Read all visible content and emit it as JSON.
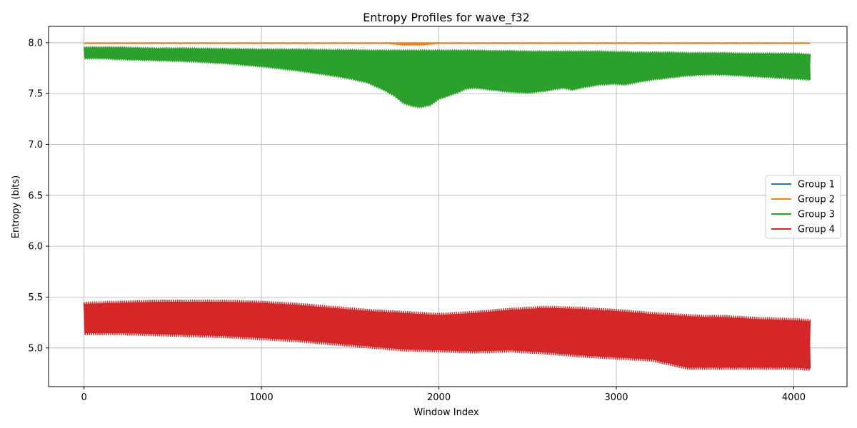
{
  "chart_data": {
    "type": "line",
    "title": "Entropy Profiles for wave_f32",
    "xlabel": "Window Index",
    "ylabel": "Entropy (bits)",
    "xlim": [
      -200,
      4300
    ],
    "ylim": [
      4.62,
      8.16
    ],
    "x_ticks": [
      0,
      1000,
      2000,
      3000,
      4000
    ],
    "y_ticks": [
      5.0,
      5.5,
      6.0,
      6.5,
      7.0,
      7.5,
      8.0
    ],
    "x_tick_labels": [
      "0",
      "1000",
      "2000",
      "3000",
      "4000"
    ],
    "y_tick_labels": [
      "5.0",
      "5.5",
      "6.0",
      "6.5",
      "7.0",
      "7.5",
      "8.0"
    ],
    "grid": true,
    "legend_position": "right",
    "series": [
      {
        "name": "Group 1",
        "color": "#1f77b4",
        "x": [
          0,
          500,
          1000,
          1500,
          2000,
          2500,
          3000,
          3500,
          4095
        ],
        "upper": [
          7.998,
          7.998,
          7.998,
          7.998,
          7.998,
          7.998,
          7.998,
          7.998,
          7.998
        ],
        "lower": [
          7.994,
          7.994,
          7.994,
          7.994,
          7.994,
          7.994,
          7.994,
          7.994,
          7.994
        ]
      },
      {
        "name": "Group 2",
        "color": "#ff7f0e",
        "x": [
          0,
          500,
          1000,
          1500,
          1700,
          1800,
          1900,
          2000,
          2100,
          2500,
          3000,
          3500,
          4095
        ],
        "upper": [
          8.0,
          8.0,
          8.0,
          8.0,
          8.0,
          7.998,
          7.997,
          8.0,
          8.0,
          8.0,
          8.0,
          8.0,
          8.0
        ],
        "lower": [
          7.99,
          7.99,
          7.99,
          7.99,
          7.99,
          7.975,
          7.975,
          7.99,
          7.99,
          7.99,
          7.99,
          7.99,
          7.99
        ]
      },
      {
        "name": "Group 3",
        "color": "#2ca02c",
        "x": [
          0,
          100,
          200,
          400,
          600,
          800,
          1000,
          1200,
          1400,
          1500,
          1600,
          1700,
          1750,
          1800,
          1850,
          1900,
          1950,
          2000,
          2050,
          2100,
          2150,
          2200,
          2300,
          2400,
          2500,
          2600,
          2700,
          2750,
          2800,
          2900,
          3000,
          3050,
          3100,
          3200,
          3300,
          3400,
          3500,
          3600,
          3700,
          3800,
          3900,
          4000,
          4095
        ],
        "upper": [
          7.96,
          7.96,
          7.96,
          7.95,
          7.95,
          7.945,
          7.94,
          7.94,
          7.935,
          7.935,
          7.93,
          7.93,
          7.93,
          7.93,
          7.93,
          7.93,
          7.93,
          7.93,
          7.93,
          7.93,
          7.93,
          7.93,
          7.925,
          7.925,
          7.92,
          7.92,
          7.92,
          7.92,
          7.92,
          7.92,
          7.915,
          7.915,
          7.91,
          7.91,
          7.91,
          7.905,
          7.905,
          7.905,
          7.9,
          7.9,
          7.9,
          7.9,
          7.89
        ],
        "lower": [
          7.84,
          7.84,
          7.83,
          7.82,
          7.81,
          7.79,
          7.76,
          7.72,
          7.67,
          7.64,
          7.6,
          7.52,
          7.47,
          7.4,
          7.37,
          7.36,
          7.38,
          7.44,
          7.47,
          7.5,
          7.54,
          7.55,
          7.53,
          7.51,
          7.5,
          7.52,
          7.55,
          7.53,
          7.55,
          7.58,
          7.59,
          7.58,
          7.6,
          7.63,
          7.65,
          7.67,
          7.68,
          7.68,
          7.67,
          7.66,
          7.65,
          7.64,
          7.63
        ]
      },
      {
        "name": "Group 4",
        "color": "#d62728",
        "x": [
          0,
          200,
          400,
          600,
          800,
          1000,
          1200,
          1400,
          1600,
          1800,
          2000,
          2200,
          2400,
          2600,
          2800,
          3000,
          3200,
          3300,
          3400,
          3500,
          3600,
          3800,
          4000,
          4095
        ],
        "upper": [
          5.45,
          5.46,
          5.47,
          5.47,
          5.47,
          5.46,
          5.44,
          5.41,
          5.38,
          5.36,
          5.34,
          5.36,
          5.39,
          5.41,
          5.4,
          5.38,
          5.35,
          5.34,
          5.33,
          5.32,
          5.32,
          5.3,
          5.29,
          5.28
        ],
        "lower": [
          5.13,
          5.13,
          5.12,
          5.11,
          5.1,
          5.08,
          5.06,
          5.03,
          5.0,
          4.97,
          4.96,
          4.95,
          4.96,
          4.94,
          4.91,
          4.89,
          4.87,
          4.83,
          4.79,
          4.79,
          4.79,
          4.79,
          4.79,
          4.78
        ]
      }
    ]
  }
}
